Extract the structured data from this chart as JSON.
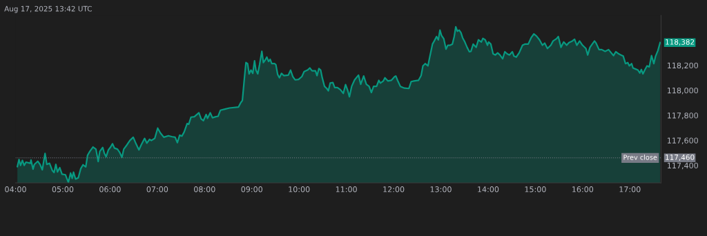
{
  "chart_data": {
    "type": "area",
    "title": "Aug 17, 2025 13:42 UTC",
    "xlim": [
      4.0,
      17.66
    ],
    "xticks": [
      {
        "value": 4,
        "label": "04:00"
      },
      {
        "value": 5,
        "label": "05:00"
      },
      {
        "value": 6,
        "label": "06:00"
      },
      {
        "value": 7,
        "label": "07:00"
      },
      {
        "value": 8,
        "label": "08:00"
      },
      {
        "value": 9,
        "label": "09:00"
      },
      {
        "value": 10,
        "label": "10:00"
      },
      {
        "value": 11,
        "label": "11:00"
      },
      {
        "value": 12,
        "label": "12:00"
      },
      {
        "value": 13,
        "label": "13:00"
      },
      {
        "value": 14,
        "label": "14:00"
      },
      {
        "value": 15,
        "label": "15:00"
      },
      {
        "value": 16,
        "label": "16:00"
      },
      {
        "value": 17,
        "label": "17:00"
      }
    ],
    "ylim": [
      117260,
      118600
    ],
    "yticks": [
      {
        "value": 117400,
        "label": "117,400"
      },
      {
        "value": 117600,
        "label": "117,600"
      },
      {
        "value": 117800,
        "label": "117,800"
      },
      {
        "value": 118000,
        "label": "118,000"
      },
      {
        "value": 118200,
        "label": "118,200"
      }
    ],
    "grid": false,
    "series": [
      {
        "color": "#089981",
        "x": [
          4.039,
          4.073,
          4.106,
          4.145,
          4.183,
          4.221,
          4.312,
          4.327,
          4.37,
          4.398,
          4.47,
          4.518,
          4.566,
          4.624,
          4.662,
          4.719,
          4.777,
          4.815,
          4.853,
          4.887,
          4.935,
          4.983,
          5.055,
          5.117,
          5.165,
          5.198,
          5.227,
          5.27,
          5.328,
          5.38,
          5.428,
          5.486,
          5.524,
          5.572,
          5.639,
          5.701,
          5.749,
          5.783,
          5.845,
          5.878,
          5.917,
          5.965,
          6.012,
          6.051,
          6.094,
          6.156,
          6.204,
          6.252,
          6.29,
          6.357,
          6.419,
          6.491,
          6.549,
          6.611,
          6.659,
          6.731,
          6.779,
          6.836,
          6.874,
          6.946,
          7.008,
          7.066,
          7.138,
          7.234,
          7.305,
          7.377,
          7.425,
          7.473,
          7.521,
          7.569,
          7.631,
          7.665,
          7.713,
          7.784,
          7.88,
          7.928,
          7.976,
          8.033,
          8.062,
          8.12,
          8.167,
          8.239,
          8.287,
          8.335,
          8.431,
          8.527,
          8.718,
          8.766,
          8.8,
          8.848,
          8.876,
          8.91,
          8.943,
          8.982,
          9.02,
          9.058,
          9.087,
          9.126,
          9.164,
          9.212,
          9.245,
          9.279,
          9.317,
          9.355,
          9.389,
          9.422,
          9.485,
          9.509,
          9.547,
          9.585,
          9.628,
          9.676,
          9.772,
          9.82,
          9.868,
          9.916,
          9.988,
          10.059,
          10.107,
          10.179,
          10.227,
          10.275,
          10.347,
          10.38,
          10.419,
          10.457,
          10.49,
          10.538,
          10.586,
          10.62,
          10.658,
          10.715,
          10.754,
          10.811,
          10.873,
          10.936,
          10.984,
          11.031,
          11.065,
          11.113,
          11.175,
          11.257,
          11.304,
          11.367,
          11.424,
          11.482,
          11.53,
          11.577,
          11.64,
          11.688,
          11.721,
          11.783,
          11.817,
          11.879,
          11.951,
          12.023,
          12.047,
          12.085,
          12.143,
          12.229,
          12.324,
          12.372,
          12.43,
          12.526,
          12.583,
          12.621,
          12.669,
          12.727,
          12.765,
          12.823,
          12.861,
          12.909,
          12.947,
          12.981,
          13.014,
          13.062,
          13.11,
          13.148,
          13.196,
          13.244,
          13.283,
          13.316,
          13.35,
          13.388,
          13.426,
          13.46,
          13.508,
          13.556,
          13.604,
          13.637,
          13.685,
          13.747,
          13.795,
          13.857,
          13.891,
          13.939,
          13.987,
          14.011,
          14.058,
          14.106,
          14.154,
          14.202,
          14.25,
          14.308,
          14.355,
          14.403,
          14.451,
          14.513,
          14.547,
          14.595,
          14.657,
          14.729,
          14.777,
          14.849,
          14.911,
          14.968,
          15.026,
          15.088,
          15.15,
          15.198,
          15.256,
          15.328,
          15.375,
          15.447,
          15.486,
          15.543,
          15.6,
          15.663,
          15.711,
          15.783,
          15.83,
          15.878,
          15.936,
          15.998,
          16.07,
          16.108,
          16.156,
          16.204,
          16.252,
          16.285,
          16.348,
          16.405,
          16.477,
          16.549,
          16.606,
          16.654,
          16.702,
          16.764,
          16.812,
          16.86,
          16.908,
          16.956,
          16.989,
          17.037,
          17.066,
          17.123,
          17.171,
          17.21,
          17.243,
          17.277,
          17.315,
          17.363,
          17.411,
          17.459,
          17.507,
          17.545,
          17.593,
          17.641
        ],
        "values": [
          117391,
          117447,
          117400,
          117440,
          117400,
          117426,
          117417,
          117443,
          117370,
          117408,
          117433,
          117408,
          117365,
          117495,
          117408,
          117417,
          117360,
          117343,
          117408,
          117348,
          117382,
          117330,
          117325,
          117265,
          117339,
          117296,
          117346,
          117291,
          117301,
          117374,
          117405,
          117388,
          117481,
          117512,
          117547,
          117530,
          117431,
          117512,
          117543,
          117498,
          117469,
          117524,
          117547,
          117573,
          117538,
          117530,
          117504,
          117464,
          117530,
          117564,
          117599,
          117625,
          117573,
          117524,
          117564,
          117616,
          117578,
          117608,
          117599,
          117616,
          117698,
          117659,
          117625,
          117637,
          117630,
          117625,
          117582,
          117642,
          117634,
          117668,
          117734,
          117729,
          117786,
          117789,
          117821,
          117772,
          117758,
          117807,
          117776,
          117821,
          117781,
          117789,
          117793,
          117841,
          117850,
          117859,
          117867,
          117902,
          117919,
          118118,
          118222,
          118214,
          118132,
          118162,
          118136,
          118236,
          118162,
          118132,
          118205,
          118312,
          118222,
          118240,
          118266,
          118231,
          118248,
          118214,
          118214,
          118205,
          118127,
          118101,
          118136,
          118118,
          118122,
          118162,
          118110,
          118084,
          118087,
          118110,
          118150,
          118162,
          118179,
          118156,
          118156,
          118118,
          118174,
          118162,
          118101,
          118032,
          118015,
          117997,
          118058,
          118063,
          118023,
          118023,
          118006,
          117976,
          118046,
          117997,
          117949,
          118032,
          118084,
          118122,
          118049,
          118115,
          118049,
          118032,
          117983,
          118032,
          118032,
          118080,
          118058,
          118075,
          118101,
          118075,
          118080,
          118110,
          118115,
          118080,
          118032,
          118018,
          118015,
          118070,
          118075,
          118080,
          118118,
          118196,
          118214,
          118196,
          118266,
          118370,
          118395,
          118430,
          118404,
          118482,
          118439,
          118413,
          118330,
          118361,
          118361,
          118370,
          118430,
          118508,
          118473,
          118482,
          118461,
          118421,
          118387,
          118344,
          118309,
          118312,
          118370,
          118344,
          118404,
          118387,
          118416,
          118404,
          118361,
          118387,
          118370,
          118292,
          118283,
          118300,
          118283,
          118253,
          118309,
          118292,
          118283,
          118309,
          118274,
          118266,
          118300,
          118361,
          118370,
          118370,
          118421,
          118451,
          118434,
          118404,
          118361,
          118378,
          118335,
          118361,
          118395,
          118413,
          118430,
          118344,
          118387,
          118361,
          118382,
          118395,
          118409,
          118361,
          118395,
          118361,
          118335,
          118283,
          118344,
          118370,
          118395,
          118378,
          118326,
          118326,
          118312,
          118326,
          118300,
          118278,
          118309,
          118292,
          118283,
          118274,
          118214,
          118222,
          118196,
          118214,
          118179,
          118170,
          118162,
          118139,
          118167,
          118132,
          118162,
          118196,
          118188,
          118278,
          118214,
          118274,
          118318,
          118382
        ]
      }
    ],
    "ref_lines": [
      {
        "axis": "y",
        "value": 117460,
        "label": "Prev close",
        "color": "#787b86",
        "line_style": "dotted"
      }
    ],
    "annotations": [
      "118,382",
      "117,460"
    ]
  }
}
